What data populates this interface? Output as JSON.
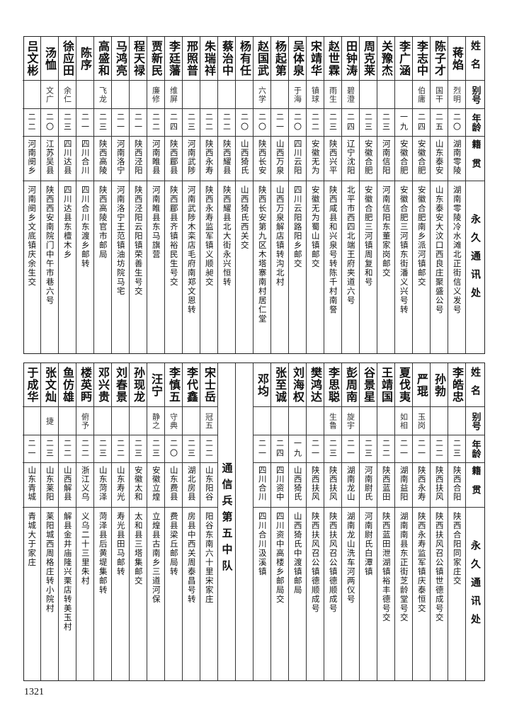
{
  "headers": {
    "name": "姓名",
    "alias": "别号",
    "age": "年龄",
    "native": "籍贯",
    "address": "永久通讯处"
  },
  "top": {
    "rows": [
      {
        "name": "蒋焰",
        "alias": "烈明",
        "age": "二〇",
        "native": "湖南零陵",
        "address": "湖南零陵冷水滩北正街信义发号"
      },
      {
        "name": "陈子才",
        "alias": "国干",
        "age": "二五",
        "native": "山东泰安",
        "address": "山东泰安大汶口西良庄聚盛公号"
      },
      {
        "name": "李志中",
        "alias": "伯庸",
        "age": "二四",
        "native": "安徽合肥",
        "address": "安徽合肥南乡派河镇邮交"
      },
      {
        "name": "李广涵",
        "alias": "",
        "age": "一九",
        "native": "安徽合肥",
        "address": "安徽合肥三河镇东街潘义兴号转"
      },
      {
        "name": "关豫杰",
        "alias": "",
        "age": "二三",
        "native": "河南信阳",
        "address": "河南信阳东董家岗邮交"
      },
      {
        "name": "周克莱",
        "alias": "",
        "age": "二三",
        "native": "安徽合肥",
        "address": "安徽合肥三河镇周复和号"
      },
      {
        "name": "田钟涛",
        "alias": "碧澄",
        "age": "二四",
        "native": "辽宁沈阳",
        "address": "北平市西四北端王府夹道六号"
      },
      {
        "name": "赵世霖",
        "alias": "雨生",
        "age": "二三",
        "native": "陕西兴平",
        "address": "陕西咸县和兴泉号转陈千村南詧"
      },
      {
        "name": "宋靖华",
        "alias": "镇球",
        "age": "二二",
        "native": "安徽无为",
        "address": "安徽无为蜀山镇邮交"
      },
      {
        "name": "吴体泉",
        "alias": "于海",
        "age": "二〇",
        "native": "四川云阳",
        "address": "四川云阳路阳乡邮交"
      },
      {
        "name": "杨起第",
        "alias": "",
        "age": "二一",
        "native": "山西万泉",
        "address": "山西万泉解店镇转沟北村"
      },
      {
        "name": "赵国武",
        "alias": "六学",
        "age": "二〇",
        "native": "陕西长安",
        "address": "陕西长安第九区木塔寨南村居仁堂"
      },
      {
        "name": "杨有任",
        "alias": "",
        "age": "二〇",
        "native": "山西猗氏",
        "address": "山西猗氏西关交"
      },
      {
        "name": "蔡治中",
        "alias": "",
        "age": "二二",
        "native": "陕西耀县",
        "address": "陕西耀县北大街永兴恒转"
      },
      {
        "name": "朱瑞祥",
        "alias": "",
        "age": "二二",
        "native": "陕西永寿",
        "address": "陕西永寿监军镇义顺昶交"
      },
      {
        "name": "邢照普",
        "alias": "",
        "age": "二三",
        "native": "河南武陟",
        "address": "河南武陟木栾店毛府南郑文恩转"
      },
      {
        "name": "李廷藩",
        "alias": "维屏",
        "age": "二四",
        "native": "陕西郿县",
        "address": "陕西郿县齐镇裕民生号交"
      },
      {
        "name": "贾新民",
        "alias": "廉修",
        "age": "二二",
        "native": "河南睢县",
        "address": "河南睢县东马旗营"
      },
      {
        "name": "程天禄",
        "alias": "",
        "age": "二一",
        "native": "陕西泾阳",
        "address": "陕西泾阳云阳镇荣善生号交"
      },
      {
        "name": "马鸿亮",
        "alias": "",
        "age": "二一",
        "native": "河南洛宁",
        "address": "河南洛宁王范镇油坊院马宅"
      },
      {
        "name": "高盛和",
        "alias": "飞龙",
        "age": "二三",
        "native": "陕西高陵",
        "address": "陕西高陵官市邮局"
      },
      {
        "name": "陈序",
        "alias": "",
        "age": "二一",
        "native": "四川合川",
        "address": "四川合川东渡乡邮转"
      },
      {
        "name": "徐应田",
        "alias": "余仁",
        "age": "二三",
        "native": "四川达县",
        "address": "四川达县东檀木乡"
      },
      {
        "name": "汤恤",
        "alias": "文广",
        "age": "二〇",
        "native": "江苏吴县",
        "address": "陕西西安南院门中午市巷六号"
      },
      {
        "name": "吕文彬",
        "alias": "",
        "age": "二二",
        "native": "河南阌乡",
        "address": "河南阌乡文底镇庆余生交"
      }
    ]
  },
  "bottom": {
    "rows_right": [
      {
        "name": "李皓忠",
        "alias": "",
        "age": "二三",
        "native": "陕西合阳",
        "address": "陕西合阳同家庄交"
      },
      {
        "name": "孙勃",
        "alias": "",
        "age": "二二",
        "native": "陕西扶风",
        "address": "陕西扶风召公镇世德成号交"
      },
      {
        "name": "严琨",
        "alias": "玉岗",
        "age": "二一",
        "native": "陕西永寿",
        "address": "陕西永寿监军镇庆泰恒交"
      },
      {
        "name": "夏伐夷",
        "alias": "如相",
        "age": "二一",
        "native": "湖南益阳",
        "address": "湖南南县东正街芝龄堂号交"
      },
      {
        "name": "王靖国",
        "alias": "",
        "age": "二二",
        "native": "陕西蓝田",
        "address": "陕西蓝田泄湖镇裕丰德号交"
      },
      {
        "name": "谷景星",
        "alias": "",
        "age": "二三",
        "native": "河南尉氏",
        "address": "河南尉氏白潭镇"
      },
      {
        "name": "彭周南",
        "alias": "旋宇",
        "age": "二一",
        "native": "湖南龙山",
        "address": "湖南龙山洗车河两仪号"
      },
      {
        "name": "李思聪",
        "alias": "生鲁",
        "age": "二三",
        "native": "陕西扶风",
        "address": "陕西扶风召公镇德顺成号"
      },
      {
        "name": "樊鸿达",
        "alias": "",
        "age": "二一",
        "native": "陕西扶风",
        "address": "陕西扶风召公镇德顺成号"
      },
      {
        "name": "刘海权",
        "alias": "",
        "age": "一九",
        "native": "山西猗氏",
        "address": "山西猗氏中渡镇邮局"
      },
      {
        "name": "张至诚",
        "alias": "",
        "age": "二四",
        "native": "四川资中",
        "address": "四川资中高楼乡邮局交"
      },
      {
        "name": "邓均",
        "alias": "",
        "age": "二一",
        "native": "四川合川",
        "address": "四川合川汲溪镇"
      }
    ],
    "unit_title": "通信兵第五中队",
    "rows_left": [
      {
        "name": "宋士岳",
        "alias": "冠五",
        "age": "二二",
        "native": "山东阳谷",
        "address": "阳谷东南六十里宋家庄"
      },
      {
        "name": "李代鑫",
        "alias": "",
        "age": "二三",
        "native": "湖北房县",
        "address": "房县中西关周泰昌号转"
      },
      {
        "name": "李慎五",
        "alias": "守典",
        "age": "二〇",
        "native": "山东费县",
        "address": "费县梁丘邮局转"
      },
      {
        "name": "汪宁",
        "alias": "静之",
        "age": "二三",
        "native": "安徽立煌",
        "address": "立煌县古南乡三道河保"
      },
      {
        "name": "孙现龙",
        "alias": "",
        "age": "二三",
        "native": "安徽太和",
        "address": "太和县三塔集邮交"
      },
      {
        "name": "刘春景",
        "alias": "",
        "age": "二二",
        "native": "山东寿光",
        "address": "寿光县田马邮转"
      },
      {
        "name": "邓兴贵",
        "alias": "",
        "age": "二三",
        "native": "山东菏泽",
        "address": "菏泽县后黄堤集邮转"
      },
      {
        "name": "楼英眄",
        "alias": "俯予",
        "age": "二二",
        "native": "浙江义乌",
        "address": "义乌二十三里朱村"
      },
      {
        "name": "鱼仿雄",
        "alias": "",
        "age": "二二",
        "native": "山西解县",
        "address": "解县金井庙隆兴栗店转美玉村"
      },
      {
        "name": "张文灿",
        "alias": "捷",
        "age": "二三",
        "native": "山东莱阳",
        "address": "莱阳城西周格庄转小院村"
      },
      {
        "name": "于成华",
        "alias": "",
        "age": "二一",
        "native": "山东青城",
        "address": "青城大于家庄"
      }
    ]
  },
  "page_number": "1321"
}
